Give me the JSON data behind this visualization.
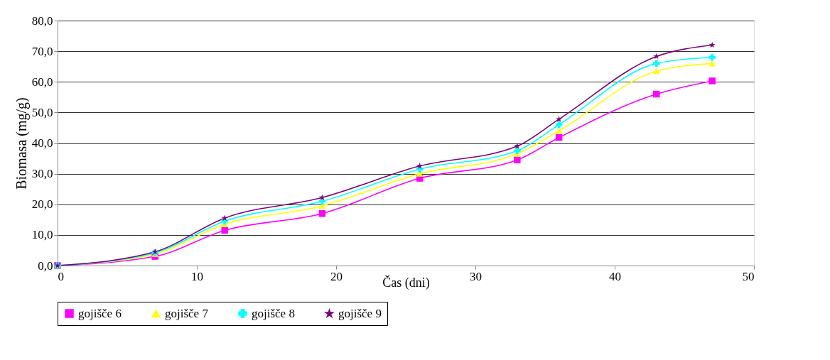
{
  "chart_data": {
    "type": "line",
    "xlabel": "Čas (dni)",
    "ylabel": "Biomasa  (mg/g)",
    "x": [
      0,
      7,
      12,
      19,
      26,
      33,
      36,
      43,
      47
    ],
    "series": [
      {
        "name": "gojišče 6",
        "color": "#ff00ff",
        "marker": "square",
        "values": [
          0.0,
          3.0,
          11.5,
          17.0,
          28.5,
          34.5,
          41.8,
          56.0,
          60.3
        ]
      },
      {
        "name": "gojišče 7",
        "color": "#ffff00",
        "marker": "triangle",
        "values": [
          0.0,
          3.8,
          13.5,
          19.5,
          30.0,
          36.5,
          44.0,
          63.5,
          66.0
        ]
      },
      {
        "name": "gojišče 8",
        "color": "#00ffff",
        "marker": "cross",
        "values": [
          0.0,
          4.2,
          14.5,
          21.0,
          31.5,
          37.5,
          46.0,
          66.0,
          68.0
        ]
      },
      {
        "name": "gojišče 9",
        "color": "#800080",
        "marker": "star",
        "values": [
          0.0,
          4.5,
          15.5,
          22.2,
          32.5,
          39.0,
          47.8,
          68.3,
          72.0
        ]
      }
    ],
    "xlim": [
      0,
      50
    ],
    "xticks": [
      0,
      10,
      20,
      30,
      40,
      50
    ],
    "ylim": [
      0,
      80
    ],
    "yticks": [
      {
        "value": 0,
        "label": "0,0"
      },
      {
        "value": 10,
        "label": "10,0"
      },
      {
        "value": 20,
        "label": "20,0"
      },
      {
        "value": 30,
        "label": "30,0"
      },
      {
        "value": 40,
        "label": "40,0"
      },
      {
        "value": 50,
        "label": "50,0"
      },
      {
        "value": 60,
        "label": "60,0"
      },
      {
        "value": 70,
        "label": "70,0"
      },
      {
        "value": 80,
        "label": "80,0"
      }
    ],
    "grid": "y",
    "legend": "bottom"
  }
}
